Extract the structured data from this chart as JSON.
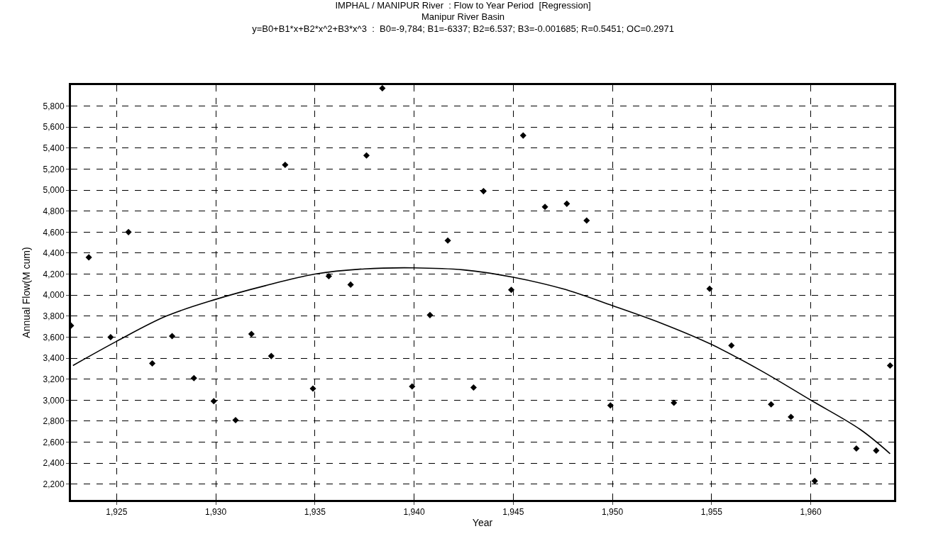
{
  "chart_data": {
    "type": "scatter",
    "title": "IMPHAL / MANIPUR River  : Flow to Year Period  [Regression]",
    "subtitle": "Manipur River Basin\ny=B0+B1*x+B2*x^2+B3*x^3  :  B0=-9,784; B1=-6337; B2=6.537; B3=-0.001685; R=0.5451; OC=0.2971",
    "xlabel": "Year",
    "ylabel": "Annual Flow(M cum)",
    "series": [
      {
        "color": "#000000",
        "marker": "diamond",
        "x": [
          1922.7,
          1923.6,
          1924.7,
          1925.6,
          1926.8,
          1927.8,
          1928.9,
          1929.9,
          1931.0,
          1931.8,
          1932.8,
          1933.5,
          1934.9,
          1935.7,
          1936.8,
          1937.6,
          1938.4,
          1939.9,
          1940.8,
          1941.7,
          1943.0,
          1943.5,
          1944.9,
          1945.5,
          1946.6,
          1947.7,
          1948.7,
          1949.9,
          1953.1,
          1954.9,
          1956.0,
          1958.0,
          1959.0,
          1960.2,
          1962.3,
          1963.3,
          1964.0
        ],
        "values": [
          3710,
          4360,
          3600,
          4600,
          3350,
          3610,
          3210,
          2990,
          2810,
          3630,
          3420,
          5240,
          3110,
          4180,
          4100,
          5330,
          5970,
          3130,
          3810,
          4520,
          3120,
          4990,
          4050,
          5520,
          4840,
          4870,
          4710,
          2950,
          2975,
          4060,
          3520,
          2960,
          2840,
          2230,
          2540,
          2520,
          3330
        ]
      },
      {
        "type": "line",
        "color": "#000000",
        "marker": "none",
        "line_style": "solid",
        "x": [
          1922.8,
          1925,
          1927.5,
          1930,
          1932.5,
          1935,
          1937.5,
          1940,
          1942.5,
          1945,
          1947.5,
          1950,
          1952.5,
          1955,
          1957.5,
          1960,
          1962.5,
          1964
        ],
        "values": [
          3330,
          3560,
          3800,
          3960,
          4090,
          4200,
          4250,
          4260,
          4240,
          4170,
          4060,
          3900,
          3730,
          3530,
          3280,
          3000,
          2720,
          2490
        ]
      }
    ],
    "xlim": [
      1922.7,
      1964.2
    ],
    "xticks": [
      {
        "value": 1925,
        "label": "1,925"
      },
      {
        "value": 1930,
        "label": "1,930"
      },
      {
        "value": 1935,
        "label": "1,935"
      },
      {
        "value": 1940,
        "label": "1,940"
      },
      {
        "value": 1945,
        "label": "1,945"
      },
      {
        "value": 1950,
        "label": "1,950"
      },
      {
        "value": 1955,
        "label": "1,955"
      },
      {
        "value": 1960,
        "label": "1,960"
      }
    ],
    "ylim": [
      2050,
      6000
    ],
    "yticks": [
      {
        "value": 2200,
        "label": "2,200"
      },
      {
        "value": 2400,
        "label": "2,400"
      },
      {
        "value": 2600,
        "label": "2,600"
      },
      {
        "value": 2800,
        "label": "2,800"
      },
      {
        "value": 3000,
        "label": "3,000"
      },
      {
        "value": 3200,
        "label": "3,200"
      },
      {
        "value": 3400,
        "label": "3,400"
      },
      {
        "value": 3600,
        "label": "3,600"
      },
      {
        "value": 3800,
        "label": "3,800"
      },
      {
        "value": 4000,
        "label": "4,000"
      },
      {
        "value": 4200,
        "label": "4,200"
      },
      {
        "value": 4400,
        "label": "4,400"
      },
      {
        "value": 4600,
        "label": "4,600"
      },
      {
        "value": 4800,
        "label": "4,800"
      },
      {
        "value": 5000,
        "label": "5,000"
      },
      {
        "value": 5200,
        "label": "5,200"
      },
      {
        "value": 5400,
        "label": "5,400"
      },
      {
        "value": 5600,
        "label": "5,600"
      },
      {
        "value": 5800,
        "label": "5,800"
      }
    ],
    "grid": true
  }
}
